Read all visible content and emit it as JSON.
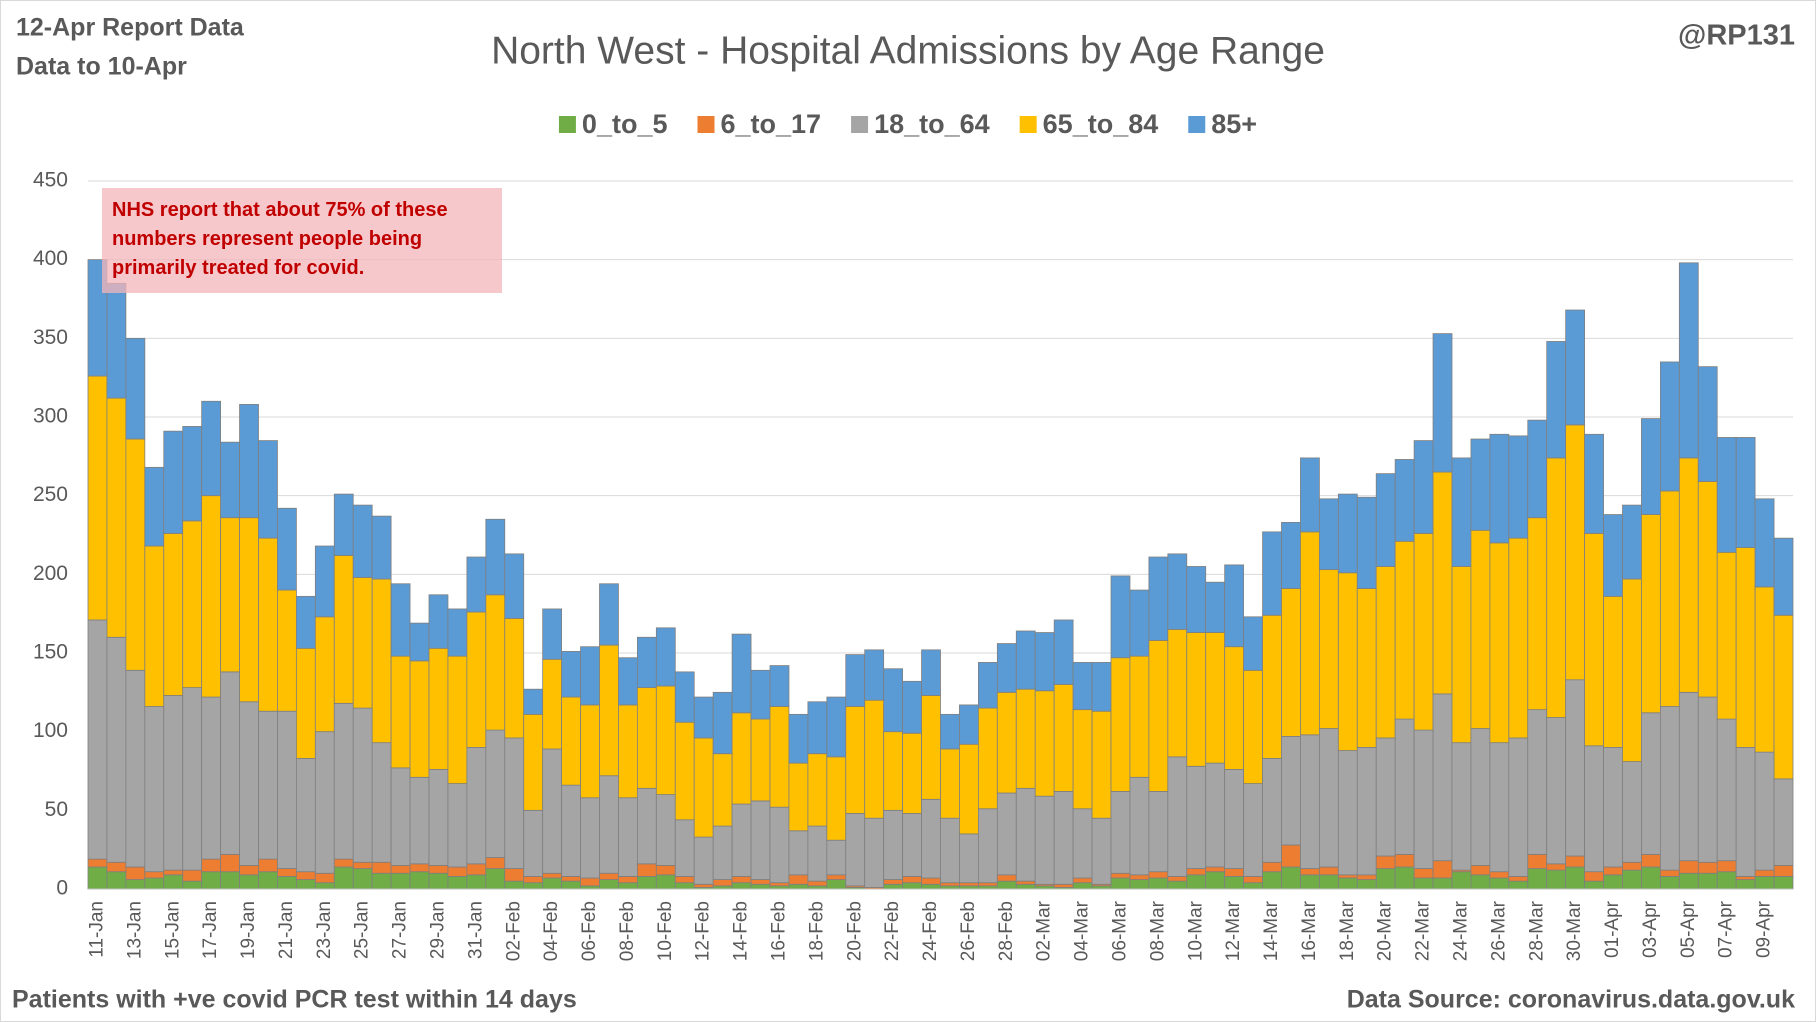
{
  "header": {
    "report": "12-Apr Report Data",
    "data_to": "Data to 10-Apr",
    "handle": "@RP131"
  },
  "footer": {
    "left": "Patients with  +ve covid PCR test within 14 days",
    "right": "Data Source: coronavirus.data.gov.uk"
  },
  "chart_data": {
    "type": "stacked_bar",
    "title": "North West - Hospital Admissions by Age Range",
    "annotation": "NHS report that about 75% of these numbers represent people being primarily treated for covid.",
    "legend": "top",
    "grid": true,
    "ylim": [
      0,
      450
    ],
    "yticks": [
      0,
      50,
      100,
      150,
      200,
      250,
      300,
      350,
      400,
      450
    ],
    "categories": [
      "11-Jan",
      null,
      "13-Jan",
      null,
      "15-Jan",
      null,
      "17-Jan",
      null,
      "19-Jan",
      null,
      "21-Jan",
      null,
      "23-Jan",
      null,
      "25-Jan",
      null,
      "27-Jan",
      null,
      "29-Jan",
      null,
      "31-Jan",
      null,
      "02-Feb",
      null,
      "04-Feb",
      null,
      "06-Feb",
      null,
      "08-Feb",
      null,
      "10-Feb",
      null,
      "12-Feb",
      null,
      "14-Feb",
      null,
      "16-Feb",
      null,
      "18-Feb",
      null,
      "20-Feb",
      null,
      "22-Feb",
      null,
      "24-Feb",
      null,
      "26-Feb",
      null,
      "28-Feb",
      null,
      "02-Mar",
      null,
      "04-Mar",
      null,
      "06-Mar",
      null,
      "08-Mar",
      null,
      "10-Mar",
      null,
      "12-Mar",
      null,
      "14-Mar",
      null,
      "16-Mar",
      null,
      "18-Mar",
      null,
      "20-Mar",
      null,
      "22-Mar",
      null,
      "24-Mar",
      null,
      "26-Mar",
      null,
      "28-Mar",
      null,
      "30-Mar",
      null,
      "01-Apr",
      null,
      "03-Apr",
      null,
      "05-Apr",
      null,
      "07-Apr",
      null,
      "09-Apr",
      null
    ],
    "series": [
      {
        "name": "0_to_5",
        "color": "#70ad47",
        "values": [
          14,
          11,
          6,
          7,
          9,
          5,
          11,
          11,
          9,
          11,
          8,
          6,
          4,
          14,
          13,
          10,
          10,
          11,
          10,
          8,
          9,
          13,
          5,
          4,
          7,
          5,
          2,
          6,
          4,
          8,
          9,
          4,
          1,
          2,
          4,
          3,
          2,
          3,
          2,
          6,
          1,
          0,
          3,
          4,
          3,
          2,
          2,
          2,
          5,
          3,
          2,
          1,
          4,
          2,
          7,
          6,
          7,
          5,
          9,
          11,
          8,
          4,
          11,
          14,
          9,
          9,
          7,
          6,
          13,
          14,
          7,
          7,
          11,
          9,
          7,
          5,
          13,
          12,
          14,
          5,
          9,
          12,
          14,
          8,
          10,
          10,
          11,
          6,
          8,
          8
        ]
      },
      {
        "name": "6_to_17",
        "color": "#ed7d31",
        "values": [
          5,
          6,
          8,
          4,
          3,
          7,
          8,
          11,
          6,
          8,
          5,
          5,
          6,
          5,
          4,
          7,
          5,
          5,
          5,
          6,
          7,
          7,
          8,
          4,
          3,
          3,
          5,
          4,
          4,
          8,
          6,
          4,
          2,
          4,
          4,
          3,
          2,
          6,
          3,
          3,
          1,
          1,
          3,
          4,
          4,
          2,
          2,
          2,
          4,
          2,
          1,
          2,
          3,
          1,
          3,
          3,
          4,
          3,
          4,
          3,
          5,
          4,
          6,
          14,
          4,
          5,
          2,
          3,
          8,
          8,
          6,
          11,
          1,
          6,
          4,
          3,
          9,
          4,
          7,
          6,
          5,
          5,
          8,
          4,
          8,
          7,
          7,
          2,
          4,
          7
        ]
      },
      {
        "name": "18_to_64",
        "color": "#a5a5a5",
        "values": [
          152,
          143,
          125,
          105,
          111,
          116,
          103,
          116,
          104,
          94,
          100,
          72,
          90,
          99,
          98,
          76,
          62,
          55,
          61,
          53,
          74,
          81,
          83,
          42,
          79,
          58,
          51,
          62,
          50,
          48,
          45,
          36,
          30,
          34,
          46,
          50,
          48,
          28,
          35,
          22,
          46,
          44,
          44,
          40,
          50,
          41,
          31,
          47,
          52,
          59,
          56,
          59,
          44,
          42,
          52,
          62,
          51,
          76,
          65,
          66,
          63,
          59,
          66,
          69,
          85,
          88,
          79,
          81,
          75,
          86,
          88,
          106,
          81,
          87,
          82,
          88,
          92,
          93,
          112,
          80,
          76,
          64,
          90,
          104,
          107,
          105,
          90,
          82,
          75,
          55
        ]
      },
      {
        "name": "65_to_84",
        "color": "#ffc000",
        "values": [
          155,
          152,
          147,
          102,
          103,
          106,
          128,
          98,
          117,
          110,
          77,
          70,
          73,
          94,
          83,
          104,
          71,
          74,
          77,
          81,
          86,
          86,
          76,
          61,
          57,
          56,
          59,
          83,
          59,
          64,
          69,
          62,
          63,
          46,
          58,
          52,
          64,
          43,
          46,
          53,
          68,
          75,
          50,
          51,
          66,
          44,
          57,
          64,
          64,
          63,
          67,
          68,
          63,
          68,
          85,
          77,
          96,
          81,
          85,
          83,
          78,
          72,
          91,
          94,
          129,
          101,
          113,
          101,
          109,
          113,
          125,
          141,
          112,
          126,
          127,
          127,
          122,
          165,
          162,
          135,
          96,
          116,
          126,
          137,
          149,
          137,
          106,
          127,
          105,
          104
        ]
      },
      {
        "name": "85+",
        "color": "#5b9bd5",
        "values": [
          74,
          73,
          64,
          50,
          65,
          60,
          60,
          48,
          72,
          62,
          52,
          33,
          45,
          39,
          46,
          40,
          46,
          24,
          34,
          30,
          35,
          48,
          41,
          16,
          32,
          29,
          37,
          39,
          30,
          32,
          37,
          32,
          26,
          39,
          50,
          31,
          26,
          31,
          33,
          38,
          33,
          32,
          40,
          33,
          29,
          22,
          25,
          29,
          31,
          37,
          37,
          41,
          30,
          31,
          52,
          42,
          53,
          48,
          42,
          32,
          52,
          34,
          53,
          42,
          47,
          45,
          50,
          58,
          59,
          52,
          59,
          88,
          69,
          58,
          69,
          65,
          62,
          74,
          73,
          63,
          52,
          47,
          61,
          82,
          124,
          73,
          73,
          70,
          56,
          49
        ]
      }
    ]
  }
}
